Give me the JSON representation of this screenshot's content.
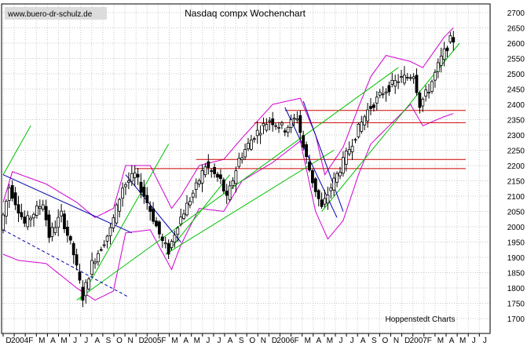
{
  "chart_data": {
    "type": "candlestick",
    "title": "Nasdaq compx Wochenchart",
    "watermark": "www.buero-dr-schulz.de",
    "credit": "Hoppenstedt Charts",
    "ylim": [
      1700,
      2700
    ],
    "y_ticks": [
      1700,
      1750,
      1800,
      1850,
      1900,
      1950,
      2000,
      2050,
      2100,
      2150,
      2200,
      2250,
      2300,
      2350,
      2400,
      2450,
      2500,
      2550,
      2600,
      2650,
      2700
    ],
    "x_labels": [
      "D",
      "2004",
      "F",
      "M",
      "A",
      "M",
      "J",
      "J",
      "A",
      "S",
      "O",
      "N",
      "D",
      "2005",
      "F",
      "M",
      "A",
      "M",
      "J",
      "J",
      "A",
      "S",
      "O",
      "N",
      "D",
      "2006",
      "F",
      "M",
      "A",
      "M",
      "J",
      "J",
      "A",
      "S",
      "O",
      "N",
      "D",
      "2007",
      "F",
      "M",
      "A",
      "M",
      "J",
      "J",
      "A"
    ],
    "grid": true,
    "colors": {
      "price": "#000000",
      "bollinger": "#d000d0",
      "support_resistance": "#cc0000",
      "uptrend": "#00c000",
      "downtrend": "#0000b0",
      "grid": "#c8c8c8",
      "background": "#ffffff"
    },
    "series": {
      "price_anchors": [
        [
          0,
          1990
        ],
        [
          3,
          2130
        ],
        [
          8,
          2010
        ],
        [
          14,
          2080
        ],
        [
          16,
          1970
        ],
        [
          20,
          2040
        ],
        [
          24,
          1910
        ],
        [
          27,
          1770
        ],
        [
          30,
          1880
        ],
        [
          36,
          1990
        ],
        [
          40,
          2130
        ],
        [
          44,
          2170
        ],
        [
          48,
          2080
        ],
        [
          53,
          1950
        ],
        [
          55,
          1920
        ],
        [
          58,
          2010
        ],
        [
          64,
          2130
        ],
        [
          67,
          2200
        ],
        [
          72,
          2150
        ],
        [
          74,
          2090
        ],
        [
          78,
          2220
        ],
        [
          83,
          2300
        ],
        [
          88,
          2350
        ],
        [
          93,
          2320
        ],
        [
          97,
          2360
        ],
        [
          99,
          2260
        ],
        [
          102,
          2150
        ],
        [
          105,
          2060
        ],
        [
          108,
          2130
        ],
        [
          111,
          2190
        ],
        [
          116,
          2300
        ],
        [
          120,
          2380
        ],
        [
          125,
          2440
        ],
        [
          130,
          2480
        ],
        [
          133,
          2490
        ],
        [
          135,
          2500
        ],
        [
          137,
          2400
        ],
        [
          140,
          2450
        ],
        [
          144,
          2550
        ],
        [
          147,
          2610
        ]
      ],
      "bollinger_upper": [
        [
          0,
          2080
        ],
        [
          3,
          2180
        ],
        [
          14,
          2140
        ],
        [
          24,
          2080
        ],
        [
          30,
          2030
        ],
        [
          36,
          2060
        ],
        [
          40,
          2200
        ],
        [
          48,
          2200
        ],
        [
          55,
          2060
        ],
        [
          58,
          2100
        ],
        [
          64,
          2200
        ],
        [
          72,
          2220
        ],
        [
          78,
          2290
        ],
        [
          88,
          2400
        ],
        [
          97,
          2420
        ],
        [
          102,
          2300
        ],
        [
          105,
          2170
        ],
        [
          111,
          2260
        ],
        [
          116,
          2390
        ],
        [
          120,
          2490
        ],
        [
          125,
          2560
        ],
        [
          133,
          2540
        ],
        [
          137,
          2520
        ],
        [
          144,
          2620
        ],
        [
          147,
          2650
        ]
      ],
      "bollinger_lower": [
        [
          0,
          1910
        ],
        [
          5,
          1890
        ],
        [
          14,
          1880
        ],
        [
          24,
          1800
        ],
        [
          30,
          1760
        ],
        [
          36,
          1790
        ],
        [
          40,
          1980
        ],
        [
          48,
          1990
        ],
        [
          55,
          1860
        ],
        [
          58,
          1940
        ],
        [
          64,
          2060
        ],
        [
          72,
          2050
        ],
        [
          78,
          2150
        ],
        [
          88,
          2210
        ],
        [
          97,
          2280
        ],
        [
          102,
          2050
        ],
        [
          106,
          1960
        ],
        [
          111,
          2020
        ],
        [
          116,
          2170
        ],
        [
          120,
          2270
        ],
        [
          125,
          2320
        ],
        [
          133,
          2400
        ],
        [
          137,
          2330
        ],
        [
          144,
          2360
        ],
        [
          147,
          2370
        ]
      ],
      "resistance_levels": [
        {
          "value": 2380,
          "x_from": 92,
          "x_to": 151
        },
        {
          "value": 2340,
          "x_from": 82,
          "x_to": 151
        },
        {
          "value": 2220,
          "x_from": 63,
          "x_to": 151
        },
        {
          "value": 2190,
          "x_from": 43,
          "x_to": 151
        }
      ],
      "uptrend_lines": [
        [
          [
            24,
            1760
          ],
          [
            129,
            2520
          ]
        ],
        [
          [
            25,
            1760
          ],
          [
            54,
            2270
          ]
        ],
        [
          [
            0,
            2170
          ],
          [
            9,
            2330
          ]
        ],
        [
          [
            53,
            1910
          ],
          [
            108,
            2250
          ]
        ],
        [
          [
            104,
            2050
          ],
          [
            149,
            2600
          ]
        ],
        [
          [
            54,
            1920
          ],
          [
            74,
            2170
          ]
        ]
      ],
      "downtrend_lines": [
        [
          [
            0,
            2170
          ],
          [
            42,
            1980
          ]
        ],
        [
          [
            40,
            2170
          ],
          [
            58,
            1950
          ]
        ],
        [
          [
            98,
            2410
          ],
          [
            111,
            2050
          ]
        ],
        [
          [
            92,
            2390
          ],
          [
            109,
            2030
          ]
        ]
      ],
      "dashed_downtrend": [
        [
          0,
          1990
        ],
        [
          41,
          1770
        ]
      ]
    }
  }
}
